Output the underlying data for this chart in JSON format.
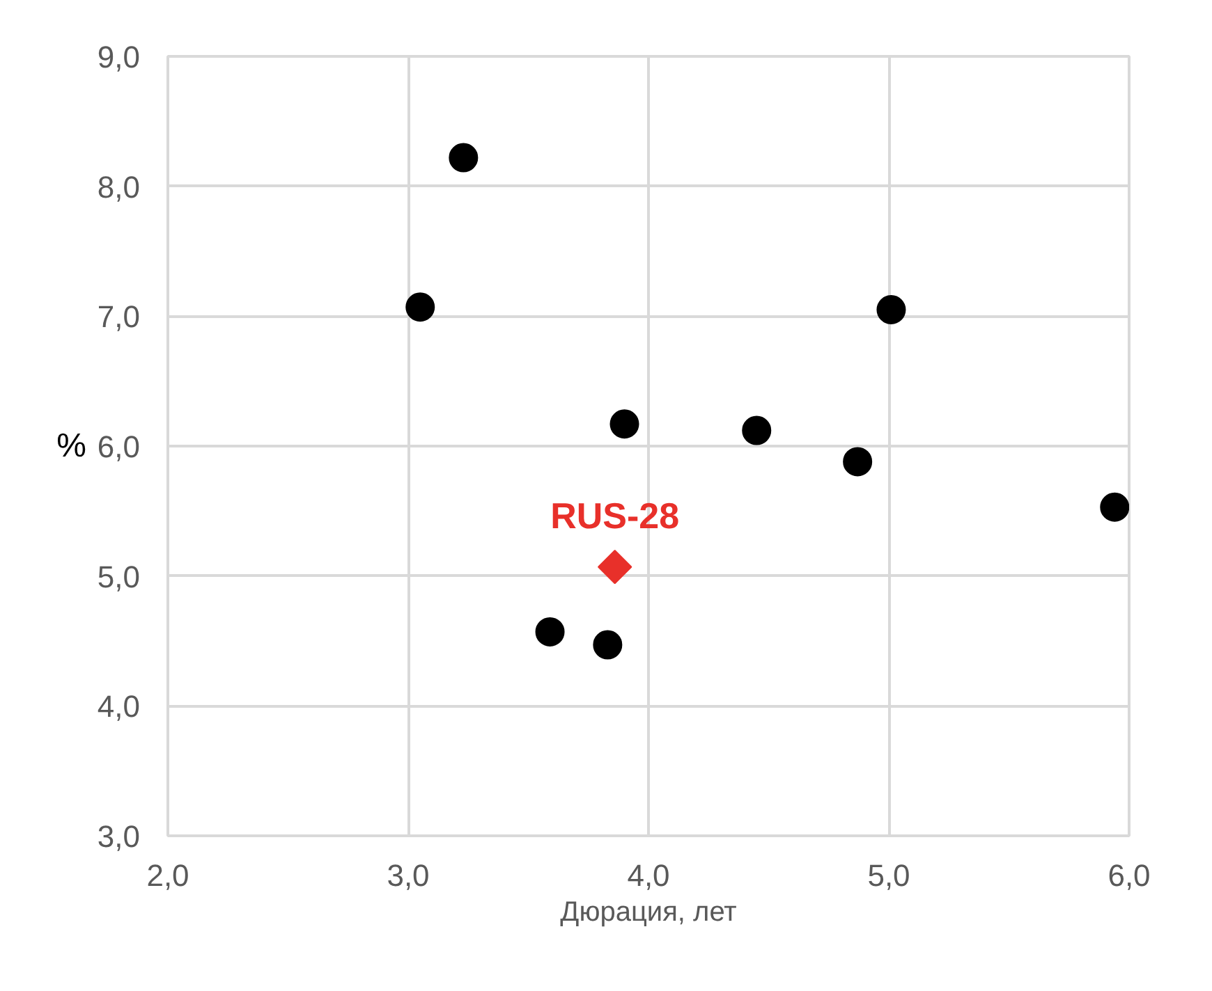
{
  "chart_data": {
    "type": "scatter",
    "xlabel": "Дюрация, лет",
    "ylabel": "%",
    "xlim": [
      2,
      6
    ],
    "ylim": [
      3,
      9
    ],
    "xticks": [
      {
        "value": 2,
        "label": "2,0"
      },
      {
        "value": 3,
        "label": "3,0"
      },
      {
        "value": 4,
        "label": "4,0"
      },
      {
        "value": 5,
        "label": "5,0"
      },
      {
        "value": 6,
        "label": "6,0"
      }
    ],
    "yticks": [
      {
        "value": 3,
        "label": "3,0"
      },
      {
        "value": 4,
        "label": "4,0"
      },
      {
        "value": 5,
        "label": "5,0"
      },
      {
        "value": 6,
        "label": "6,0"
      },
      {
        "value": 7,
        "label": "7,0"
      },
      {
        "value": 8,
        "label": "8,0"
      },
      {
        "value": 9,
        "label": "9,0"
      }
    ],
    "grid": true,
    "series": [
      {
        "color": "#000000",
        "marker": "circle",
        "x": [
          3.05,
          3.23,
          3.9,
          4.45,
          5.01,
          4.87,
          5.94,
          3.59,
          3.83
        ],
        "values": [
          7.07,
          8.22,
          6.17,
          6.12,
          7.05,
          5.88,
          5.53,
          4.57,
          4.47
        ]
      },
      {
        "name": "RUS-28",
        "color": "#e8302a",
        "marker": "diamond",
        "x": [
          3.86
        ],
        "values": [
          5.07
        ]
      }
    ]
  }
}
